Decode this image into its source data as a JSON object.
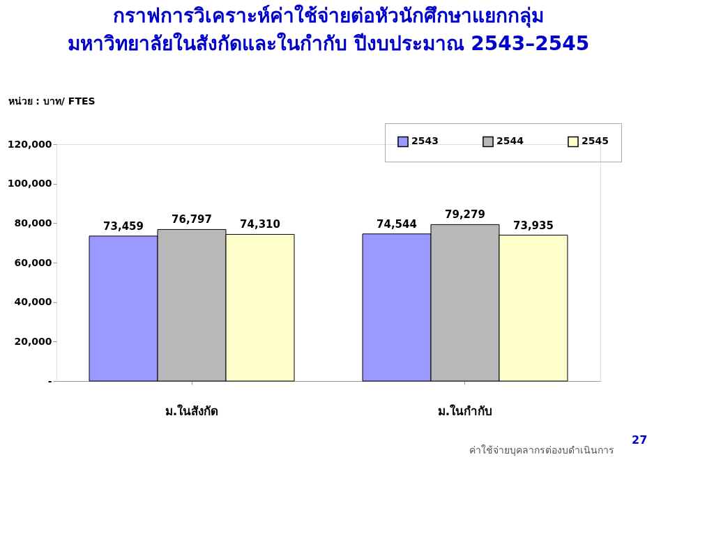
{
  "chart_data": {
    "type": "bar",
    "title": "กราฟการวิเคราะห์ค่าใช้จ่ายต่อหัวนักศึกษาแยกกลุ่ม\nมหาวิทยาลัยในสังกัดและในกำกับ ปีงบประมาณ 2543–2545",
    "ylabel": "หน่วย : บาท/ FTES",
    "categories": [
      "ม.ในสังกัด",
      "ม.ในกำกับ"
    ],
    "series": [
      {
        "name": "2543",
        "color": "#9999ff",
        "values": [
          73459,
          74544
        ],
        "value_labels": [
          "73,459",
          "74,544"
        ]
      },
      {
        "name": "2544",
        "color": "#b8b8b8",
        "values": [
          76797,
          79279
        ],
        "value_labels": [
          "76,797",
          "79,279"
        ]
      },
      {
        "name": "2545",
        "color": "#ffffcc",
        "values": [
          74310,
          73935
        ],
        "value_labels": [
          "74,310",
          "73,935"
        ]
      }
    ],
    "ylim": [
      0,
      120000
    ],
    "yticks": [
      {
        "value": 0,
        "label": "-"
      },
      {
        "value": 20000,
        "label": "20,000"
      },
      {
        "value": 40000,
        "label": "40,000"
      },
      {
        "value": 60000,
        "label": "60,000"
      },
      {
        "value": 80000,
        "label": "80,000"
      },
      {
        "value": 100000,
        "label": "100,000"
      },
      {
        "value": 120000,
        "label": "120,000"
      }
    ],
    "legend": "top right",
    "grid": false,
    "annotations": [
      "ค่าใช้จ่ายบุคลากรต่องบดำเนินการ",
      "27"
    ]
  }
}
